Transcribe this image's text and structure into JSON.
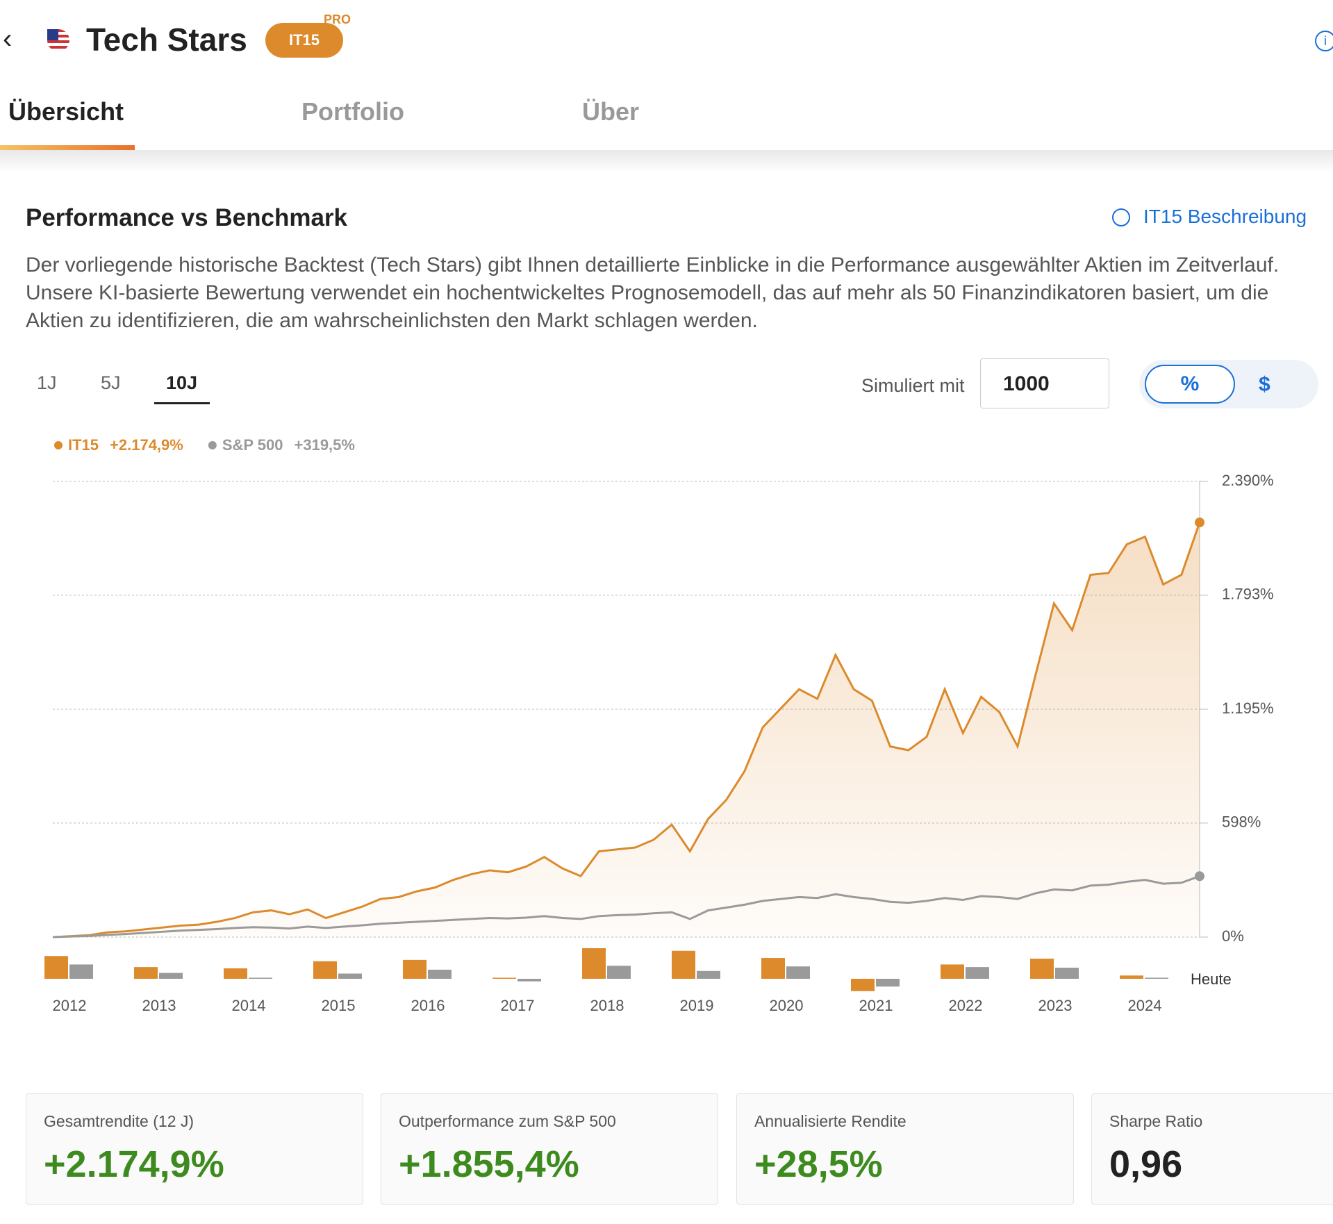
{
  "header": {
    "back": "‹",
    "title": "Tech Stars",
    "badge": "IT15",
    "pro": "PRO",
    "info": "i"
  },
  "tabs": [
    "Übersicht",
    "Portfolio",
    "Über"
  ],
  "section": {
    "title": "Performance vs Benchmark",
    "link": "IT15 Beschreibung",
    "text": "Der vorliegende historische Backtest (Tech Stars) gibt Ihnen detaillierte Einblicke in die Performance ausgewählter Aktien im Zeitverlauf. Unsere KI-basierte Bewertung verwendet ein hochentwickeltes Prognosemodell, das auf mehr als 50 Finanzindikatoren basiert, um die Aktien zu identifizieren, die am wahrscheinlichsten den Markt schlagen werden."
  },
  "periods": [
    "1J",
    "5J",
    "10J"
  ],
  "simulate": {
    "label": "Simuliert mit",
    "value": "1000",
    "units": [
      "%",
      "$"
    ]
  },
  "chart_data": [
    {
      "type": "line",
      "grid": true,
      "ylim": [
        0,
        2390
      ],
      "yticks": [
        {
          "value": 0,
          "label": "0%"
        },
        {
          "value": 598,
          "label": "598%"
        },
        {
          "value": 1195,
          "label": "1.195%"
        },
        {
          "value": 1793,
          "label": "1.793%"
        },
        {
          "value": 2390,
          "label": "2.390%"
        }
      ],
      "series": [
        {
          "name": "IT15",
          "total": "+2.174,9%",
          "color": "#dc8a2c",
          "values": [
            0,
            5,
            10,
            25,
            30,
            40,
            50,
            60,
            65,
            80,
            100,
            130,
            140,
            120,
            145,
            100,
            130,
            160,
            200,
            210,
            240,
            260,
            300,
            330,
            350,
            340,
            370,
            420,
            360,
            320,
            450,
            460,
            470,
            510,
            590,
            450,
            620,
            720,
            870,
            1100,
            1200,
            1300,
            1250,
            1480,
            1300,
            1240,
            1000,
            980,
            1050,
            1300,
            1070,
            1260,
            1180,
            1000,
            1380,
            1750,
            1610,
            1900,
            1910,
            2060,
            2100,
            1850,
            1900,
            2174.9
          ]
        },
        {
          "name": "S&P 500",
          "total": "+319,5%",
          "color": "#9a9a9a",
          "values": [
            0,
            3,
            6,
            12,
            16,
            22,
            28,
            34,
            38,
            42,
            48,
            52,
            50,
            45,
            55,
            48,
            55,
            62,
            70,
            75,
            80,
            85,
            90,
            95,
            100,
            98,
            102,
            110,
            100,
            95,
            110,
            115,
            118,
            125,
            130,
            95,
            140,
            155,
            170,
            190,
            200,
            210,
            205,
            225,
            210,
            200,
            185,
            180,
            190,
            205,
            195,
            215,
            210,
            200,
            230,
            250,
            245,
            270,
            275,
            290,
            300,
            280,
            285,
            319.5
          ]
        }
      ]
    },
    {
      "type": "bar",
      "categories": [
        "2012",
        "2013",
        "2014",
        "2015",
        "2016",
        "2017",
        "2018",
        "2019",
        "2020",
        "2021",
        "2022",
        "2023",
        "2024"
      ],
      "end_label": "Heute",
      "series": [
        {
          "name": "IT15",
          "color": "#dc8a2c",
          "values": [
            35,
            18,
            16,
            27,
            29,
            1,
            47,
            43,
            32,
            -19,
            22,
            31,
            5
          ]
        },
        {
          "name": "S&P 500",
          "color": "#9a9a9a",
          "values": [
            22,
            9,
            1,
            8,
            14,
            -4,
            20,
            12,
            19,
            -12,
            18,
            17,
            1
          ]
        }
      ]
    }
  ],
  "stats": [
    {
      "label": "Gesamtrendite (12 J)",
      "value": "+2.174,9%"
    },
    {
      "label": "Outperformance zum S&P 500",
      "value": "+1.855,4%"
    },
    {
      "label": "Annualisierte Rendite",
      "value": "+28,5%"
    },
    {
      "label": "Sharpe Ratio",
      "value": "0,96"
    }
  ]
}
